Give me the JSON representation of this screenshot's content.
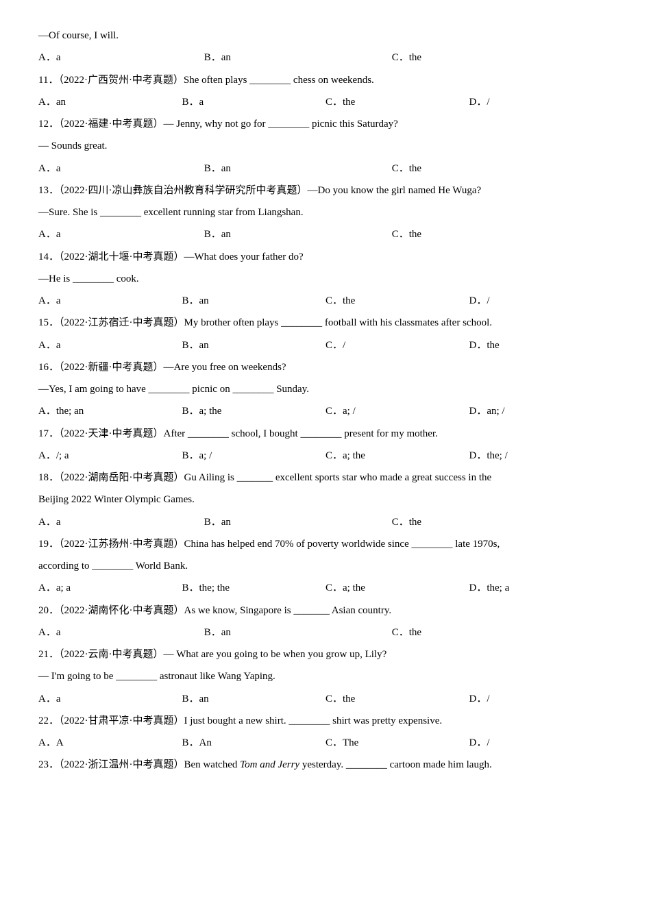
{
  "q10_stem_prefix": "—Of course, I will.",
  "q10_opts": {
    "A": "A．a",
    "B": "B．an",
    "C": "C．the"
  },
  "q11_stem": "11．（2022·广西贺州·中考真题）She often plays ________ chess on weekends.",
  "q11_opts": {
    "A": "A．an",
    "B": "B．a",
    "C": "C．the",
    "D": "D．/"
  },
  "q12_stem": "12．（2022·福建·中考真题）— Jenny, why not go for ________ picnic this Saturday?",
  "q12_stem2": "— Sounds great.",
  "q12_opts": {
    "A": "A．a",
    "B": "B．an",
    "C": "C．the"
  },
  "q13_stem": "13．（2022·四川·凉山彝族自治州教育科学研究所中考真题）—Do you know the girl named He Wuga?",
  "q13_stem2": "—Sure. She is ________ excellent running star from Liangshan.",
  "q13_opts": {
    "A": "A．a",
    "B": "B．an",
    "C": "C．the"
  },
  "q14_stem": "14．（2022·湖北十堰·中考真题）—What does your father do?",
  "q14_stem2": "—He is ________ cook.",
  "q14_opts": {
    "A": "A．a",
    "B": "B．an",
    "C": "C．the",
    "D": "D．/"
  },
  "q15_stem": "15．（2022·江苏宿迁·中考真题）My brother often plays ________ football with his classmates after school.",
  "q15_opts": {
    "A": "A．a",
    "B": "B．an",
    "C": "C．/",
    "D": "D．the"
  },
  "q16_stem": "16．（2022·新疆·中考真题）—Are you free on weekends?",
  "q16_stem2": "—Yes, I am going to have ________ picnic on ________ Sunday.",
  "q16_opts": {
    "A": "A．the; an",
    "B": "B．a; the",
    "C": "C．a; /",
    "D": "D．an; /"
  },
  "q17_stem": "17．（2022·天津·中考真题）After ________ school, I bought ________ present for my mother.",
  "q17_opts": {
    "A": "A．/; a",
    "B": "B．a; /",
    "C": "C．a; the",
    "D": "D．the; /"
  },
  "q18_stem": "18．（2022·湖南岳阳·中考真题）Gu Ailing is _______ excellent sports star who made a great success in the",
  "q18_stem2": "Beijing 2022 Winter Olympic Games.",
  "q18_opts": {
    "A": "A．a",
    "B": "B．an",
    "C": "C．the"
  },
  "q19_stem": "19．（2022·江苏扬州·中考真题）China has helped end 70% of poverty worldwide since ________ late 1970s,",
  "q19_stem2": "according to ________ World Bank.",
  "q19_opts": {
    "A": "A．a; a",
    "B": "B．the; the",
    "C": "C．a; the",
    "D": "D．the; a"
  },
  "q20_stem": "20．（2022·湖南怀化·中考真题）As we know, Singapore is _______ Asian country.",
  "q20_opts": {
    "A": "A．a",
    "B": "B．an",
    "C": "C．the"
  },
  "q21_stem": "21．（2022·云南·中考真题）— What are you going to be when you grow up, Lily?",
  "q21_stem2": "— I'm going to be ________ astronaut like Wang Yaping.",
  "q21_opts": {
    "A": "A．a",
    "B": "B．an",
    "C": "C．the",
    "D": "D．/"
  },
  "q22_stem": "22．（2022·甘肃平凉·中考真题）I just bought a new shirt. ________ shirt was pretty expensive.",
  "q22_opts": {
    "A": "A．A",
    "B": "B．An",
    "C": "C．The",
    "D": "D．/"
  },
  "q23_stem_a": "23．（2022·浙江温州·中考真题）Ben watched ",
  "q23_stem_i": "Tom and Jerry",
  "q23_stem_b": " yesterday. ________ cartoon made him laugh."
}
